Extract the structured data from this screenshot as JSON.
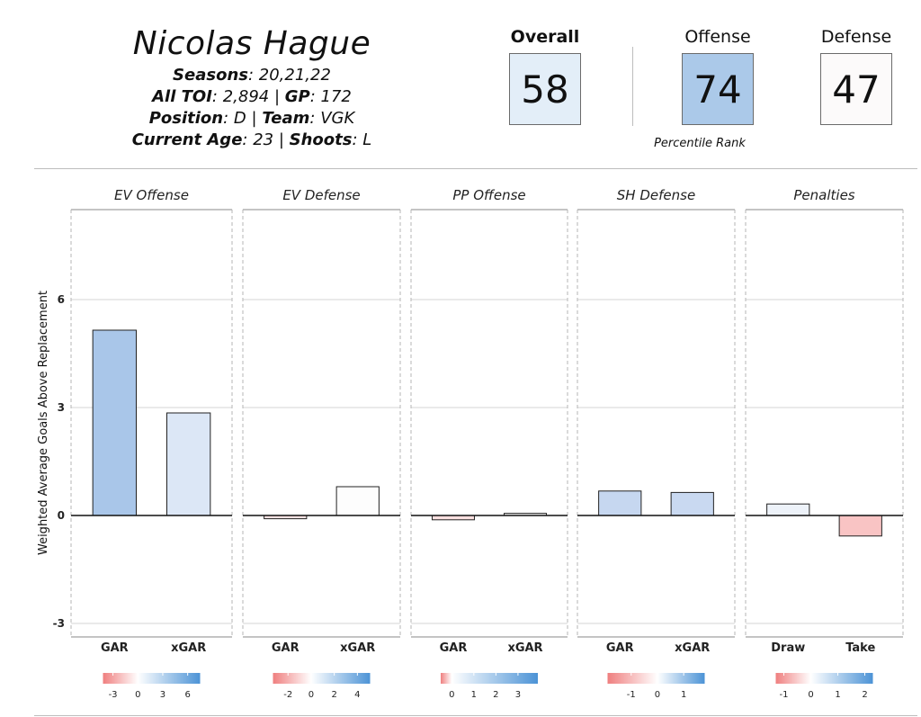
{
  "player": {
    "name": "Nicolas Hague",
    "seasons_label": "Seasons",
    "seasons": "20,21,22",
    "toi_label": "All TOI",
    "toi": "2,894",
    "gp_label": "GP",
    "gp": "172",
    "position_label": "Position",
    "position": "D",
    "team_label": "Team",
    "team": "VGK",
    "age_label": "Current Age",
    "age": "23",
    "shoots_label": "Shoots",
    "shoots": "L"
  },
  "scores": {
    "overall_label": "Overall",
    "overall": "58",
    "overall_color": "#e3eef8",
    "offense_label": "Offense",
    "offense": "74",
    "offense_color": "#abc9e9",
    "defense_label": "Defense",
    "defense": "47",
    "defense_color": "#fcfafa",
    "percentile_label": "Percentile Rank"
  },
  "chart_data": {
    "type": "bar",
    "ylabel": "Weighted Average Goals Above Replacement",
    "ylim": [
      -3.4,
      8.5
    ],
    "yticks": [
      -3,
      0,
      3,
      6
    ],
    "grid": true,
    "panels": [
      {
        "title": "EV Offense",
        "categories": [
          "GAR",
          "xGAR"
        ],
        "values": [
          5.15,
          2.85
        ],
        "colors": [
          "#a9c6e9",
          "#dce7f6"
        ],
        "legend": {
          "ticks": [
            "-3",
            "0",
            "3",
            "6"
          ],
          "min": -4.2,
          "max": 7.5
        }
      },
      {
        "title": "EV Defense",
        "categories": [
          "GAR",
          "xGAR"
        ],
        "values": [
          -0.09,
          0.8
        ],
        "colors": [
          "#fbe3e3",
          "#fdfdfd"
        ],
        "legend": {
          "ticks": [
            "-2",
            "0",
            "2",
            "4"
          ],
          "min": -3.3,
          "max": 5.1
        }
      },
      {
        "title": "PP Offense",
        "categories": [
          "GAR",
          "xGAR"
        ],
        "values": [
          -0.12,
          0.06
        ],
        "colors": [
          "#fbe0e0",
          "#f7f7f7"
        ],
        "legend": {
          "ticks": [
            "0",
            "1",
            "2",
            "3"
          ],
          "min": -0.5,
          "max": 3.9
        }
      },
      {
        "title": "SH Defense",
        "categories": [
          "GAR",
          "xGAR"
        ],
        "values": [
          0.68,
          0.64
        ],
        "colors": [
          "#c6d7f0",
          "#c9d9f1"
        ],
        "legend": {
          "ticks": [
            "-1",
            "0",
            "1"
          ],
          "min": -1.9,
          "max": 1.8
        }
      },
      {
        "title": "Penalties",
        "categories": [
          "Draw",
          "Take"
        ],
        "values": [
          0.32,
          -0.57
        ],
        "colors": [
          "#edf2f9",
          "#f9c4c4"
        ],
        "legend": {
          "ticks": [
            "-1",
            "0",
            "1",
            "2"
          ],
          "min": -1.3,
          "max": 2.3
        }
      }
    ],
    "legend_colors": {
      "negative": "#ef7f7f",
      "mid": "#ffffff",
      "positive": "#4c93d6"
    }
  }
}
